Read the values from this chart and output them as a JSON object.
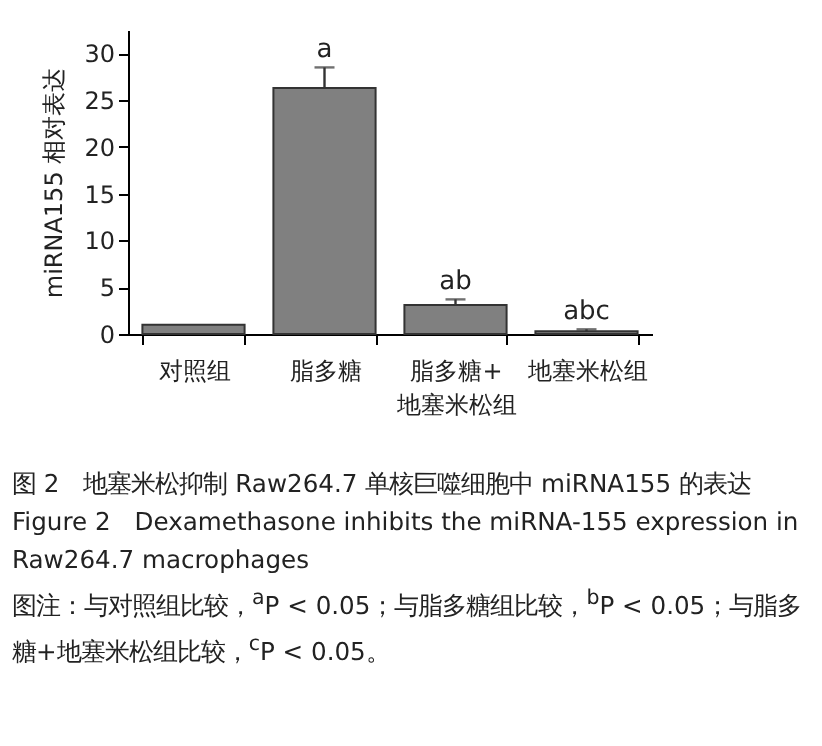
{
  "chart_data": {
    "type": "bar",
    "title": "图 2　地塞米松抑制 Raw264.7 单核巨噬细胞中 miRNA155 的表达",
    "subtitle": "Figure 2　Dexamethasone inhibits the miRNA-155 expression in Raw264.7 macrophages",
    "ylabel": "miRNA155  相对表达",
    "categories": [
      "对照组",
      "脂多糖",
      "脂多糖+\n地塞米松组",
      "地塞米松组"
    ],
    "values": [
      1.0,
      26.3,
      3.1,
      0.3
    ],
    "errors": [
      null,
      [
        26.3,
        28.5
      ],
      [
        3.1,
        3.7
      ],
      [
        0.3,
        0.5
      ]
    ],
    "color": "#808080",
    "ylim": [
      0,
      32.5
    ],
    "yticks": [
      0,
      5,
      10,
      15,
      20,
      25,
      30
    ],
    "grid": false,
    "annotations": [
      {
        "text": "a",
        "x": "脂多糖",
        "y": 28.5
      },
      {
        "text": "ab",
        "x": "脂多糖+\n地塞米松组",
        "y": 3.7
      },
      {
        "text": "abc",
        "x": "地塞米松组",
        "y": 0.5
      },
      "图注：与对照组比较，$^{a}$P < 0.05；与脂多糖组比较，$^{b}$P < 0.05；与脂多糖+地塞米松组比较，$^{c}$P < 0.05。"
    ]
  }
}
